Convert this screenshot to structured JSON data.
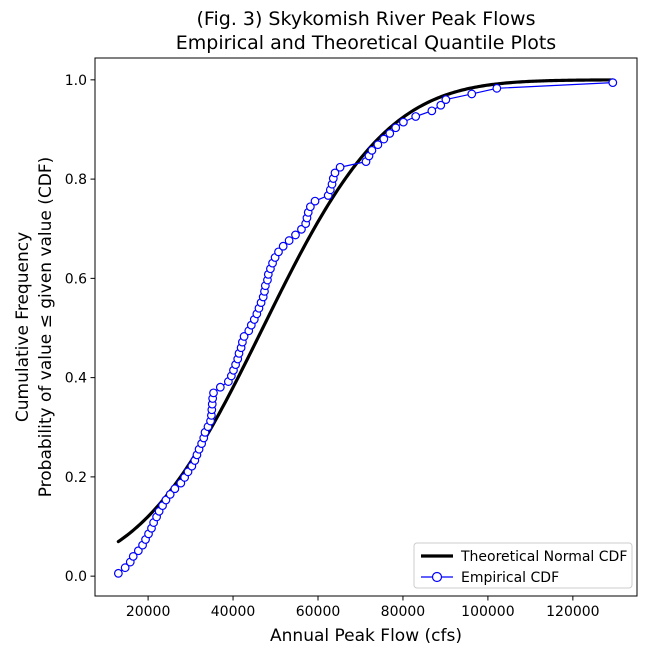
{
  "chart_data": {
    "type": "line",
    "title": "(Fig. 3) Skykomish River Peak Flows\nEmpirical and Theoretical Quantile Plots",
    "title_line1": "(Fig. 3) Skykomish River Peak Flows",
    "title_line2": "Empirical and Theoretical Quantile Plots",
    "xlabel": "Annual Peak Flow (cfs)",
    "ylabel": "Cumulative Frequency\nProbability of value ≤ given value (CDF)",
    "ylabel_line1": "Cumulative Frequency",
    "ylabel_line2": "Probability of value ≤ given value (CDF)",
    "xlim": [
      7500,
      135100
    ],
    "ylim": [
      -0.04,
      1.044
    ],
    "x_ticks": [
      20000,
      40000,
      60000,
      80000,
      100000,
      120000
    ],
    "y_ticks": [
      0.0,
      0.2,
      0.4,
      0.6,
      0.8,
      1.0
    ],
    "grid": false,
    "legend_position": "lower right",
    "series": [
      {
        "name": "Theoretical Normal CDF",
        "type": "normal_cdf",
        "color": "#000000",
        "linewidth": 3.2,
        "mean": 47000,
        "std": 23000,
        "x_start": 13000,
        "x_end": 129400
      },
      {
        "name": "Empirical CDF",
        "type": "scatter_line",
        "color": "#0000ff",
        "marker": "o",
        "marker_fill": "#ffffff",
        "plotting_position": "(i-0.5)/n",
        "n": 88,
        "flows_sorted": [
          13000,
          14600,
          15800,
          16500,
          17700,
          18700,
          19400,
          20100,
          20800,
          21300,
          22000,
          22600,
          23400,
          24200,
          25200,
          26300,
          27700,
          28600,
          29400,
          30300,
          31000,
          31500,
          32000,
          32600,
          33100,
          33400,
          34100,
          34700,
          34900,
          35000,
          35100,
          35200,
          35400,
          37000,
          38900,
          39600,
          40100,
          40600,
          41100,
          41400,
          41900,
          42200,
          42600,
          43700,
          44300,
          45000,
          45600,
          46100,
          46600,
          47100,
          47400,
          47600,
          48100,
          48300,
          48800,
          49300,
          49900,
          50700,
          51800,
          53200,
          54700,
          56100,
          57100,
          57400,
          57700,
          58200,
          59300,
          62400,
          62900,
          63300,
          63600,
          64000,
          65200,
          71300,
          72000,
          72700,
          74100,
          75500,
          76900,
          78300,
          80100,
          83000,
          86800,
          88900,
          90100,
          96200,
          102100,
          129400
        ]
      }
    ],
    "legend_entries": [
      "Theoretical Normal CDF",
      "Empirical CDF"
    ]
  }
}
